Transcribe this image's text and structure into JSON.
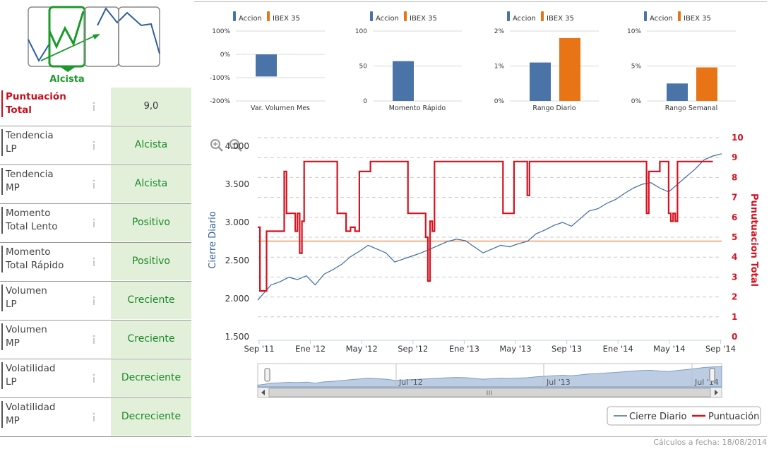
{
  "logo": {
    "label": "Alcista"
  },
  "indicators": [
    {
      "label_1": "Puntuación",
      "label_2": "Total",
      "value": "9,0"
    },
    {
      "label_1": "Tendencia",
      "label_2": "LP",
      "value": "Alcista"
    },
    {
      "label_1": "Tendencia",
      "label_2": "MP",
      "value": "Alcista"
    },
    {
      "label_1": "Momento",
      "label_2": "Total Lento",
      "value": "Positivo"
    },
    {
      "label_1": "Momento",
      "label_2": "Total Rápido",
      "value": "Positivo"
    },
    {
      "label_1": "Volumen",
      "label_2": "LP",
      "value": "Creciente"
    },
    {
      "label_1": "Volumen",
      "label_2": "MP",
      "value": "Creciente"
    },
    {
      "label_1": "Volatilidad",
      "label_2": "LP",
      "value": "Decreciente"
    },
    {
      "label_1": "Volatilidad",
      "label_2": "MP",
      "value": "Decreciente"
    }
  ],
  "colors": {
    "accion": "#4a73a8",
    "ibex": "#e87416",
    "score": "#d5121f",
    "green": "#1b8a2a"
  },
  "chart_data": [
    {
      "type": "bar",
      "title": "Var. Volumen Mes",
      "legend": [
        "Accion",
        "IBEX 35"
      ],
      "yticks": [
        "100%",
        "0%",
        "-100%",
        "-200%"
      ],
      "ylim": [
        -200,
        100
      ],
      "values": [
        -95,
        null
      ]
    },
    {
      "type": "bar",
      "title": "Momento Rápido",
      "legend": [
        "Accion",
        "IBEX 35"
      ],
      "yticks": [
        "100",
        "50",
        "0"
      ],
      "ylim": [
        0,
        100
      ],
      "values": [
        57,
        null
      ]
    },
    {
      "type": "bar",
      "title": "Rango Diario",
      "legend": [
        "Accion",
        "IBEX 35"
      ],
      "yticks": [
        "2%",
        "1%",
        "0%"
      ],
      "ylim": [
        0,
        2
      ],
      "values": [
        1.1,
        1.8
      ]
    },
    {
      "type": "bar",
      "title": "Rango Semanal",
      "legend": [
        "Accion",
        "IBEX 35"
      ],
      "yticks": [
        "10%",
        "5%",
        "0%"
      ],
      "ylim": [
        0,
        10
      ],
      "values": [
        2.5,
        4.8
      ]
    },
    {
      "type": "line",
      "title": "",
      "ylabel_left": "Cierre Diario",
      "ylabel_right": "Punutuacion Total",
      "yticks_left": [
        "1.500",
        "2.000",
        "2.500",
        "3.000",
        "3.500",
        "4.000"
      ],
      "ylim_left": [
        1500,
        4000
      ],
      "yticks_right": [
        "0",
        "1",
        "2",
        "3",
        "4",
        "5",
        "6",
        "7",
        "8",
        "9",
        "10"
      ],
      "ylim_right": [
        0,
        10
      ],
      "xticks": [
        "Sep '11",
        "Ene '12",
        "May '12",
        "Sep '12",
        "Ene '13",
        "May '13",
        "Sep '13",
        "Ene '14",
        "May '14",
        "Sep '14"
      ],
      "navigator_ticks": [
        "Jul '12",
        "Jul '13",
        "Jul '14"
      ],
      "reference_line": 4.8,
      "legend": [
        "Cierre Diario",
        "Puntuación"
      ],
      "series": [
        {
          "name": "Cierre Diario",
          "axis": "left",
          "values": [
            [
              0,
              1980
            ],
            [
              3,
              2080
            ],
            [
              6,
              2180
            ],
            [
              10,
              2220
            ],
            [
              14,
              2280
            ],
            [
              18,
              2250
            ],
            [
              22,
              2300
            ],
            [
              26,
              2180
            ],
            [
              30,
              2320
            ],
            [
              34,
              2380
            ],
            [
              38,
              2450
            ],
            [
              42,
              2550
            ],
            [
              46,
              2620
            ],
            [
              50,
              2700
            ],
            [
              54,
              2650
            ],
            [
              58,
              2600
            ],
            [
              62,
              2480
            ],
            [
              66,
              2520
            ],
            [
              70,
              2560
            ],
            [
              74,
              2600
            ],
            [
              78,
              2650
            ],
            [
              82,
              2700
            ],
            [
              86,
              2750
            ],
            [
              90,
              2780
            ],
            [
              94,
              2760
            ],
            [
              98,
              2680
            ],
            [
              102,
              2600
            ],
            [
              106,
              2650
            ],
            [
              110,
              2700
            ],
            [
              114,
              2680
            ],
            [
              118,
              2720
            ],
            [
              122,
              2750
            ],
            [
              126,
              2850
            ],
            [
              130,
              2900
            ],
            [
              134,
              2960
            ],
            [
              138,
              3000
            ],
            [
              142,
              2950
            ],
            [
              146,
              3050
            ],
            [
              150,
              3150
            ],
            [
              154,
              3180
            ],
            [
              158,
              3250
            ],
            [
              162,
              3300
            ],
            [
              166,
              3380
            ],
            [
              170,
              3450
            ],
            [
              174,
              3500
            ],
            [
              178,
              3520
            ],
            [
              182,
              3450
            ],
            [
              186,
              3400
            ],
            [
              190,
              3500
            ],
            [
              194,
              3600
            ],
            [
              198,
              3700
            ],
            [
              202,
              3820
            ],
            [
              206,
              3870
            ],
            [
              210,
              3900
            ]
          ]
        },
        {
          "name": "Puntuación",
          "axis": "right",
          "values": [
            [
              0,
              5.5
            ],
            [
              1,
              2.3
            ],
            [
              3,
              2.3
            ],
            [
              4,
              5.3
            ],
            [
              11,
              5.3
            ],
            [
              12,
              8.3
            ],
            [
              13,
              6.2
            ],
            [
              16,
              6.2
            ],
            [
              17,
              5.3
            ],
            [
              18,
              6.2
            ],
            [
              19,
              4.2
            ],
            [
              20,
              5.8
            ],
            [
              21,
              8.8
            ],
            [
              35,
              8.8
            ],
            [
              36,
              6.2
            ],
            [
              40,
              5.3
            ],
            [
              42,
              5.5
            ],
            [
              44,
              5.3
            ],
            [
              46,
              8.3
            ],
            [
              50,
              8.3
            ],
            [
              51,
              8.8
            ],
            [
              67,
              8.8
            ],
            [
              68,
              6.2
            ],
            [
              75,
              6.2
            ],
            [
              76,
              5.0
            ],
            [
              77,
              2.8
            ],
            [
              78,
              5.8
            ],
            [
              79,
              5.3
            ],
            [
              80,
              8.8
            ],
            [
              110,
              8.8
            ],
            [
              111,
              6.2
            ],
            [
              115,
              6.2
            ],
            [
              116,
              8.8
            ],
            [
              121,
              8.8
            ],
            [
              122,
              7.1
            ],
            [
              123,
              8.8
            ],
            [
              175,
              8.8
            ],
            [
              176,
              6.2
            ],
            [
              177,
              8.3
            ],
            [
              181,
              8.3
            ],
            [
              182,
              8.8
            ],
            [
              185,
              8.8
            ],
            [
              186,
              6.2
            ],
            [
              187,
              5.8
            ],
            [
              188,
              6.2
            ],
            [
              189,
              5.8
            ],
            [
              190,
              8.8
            ],
            [
              206,
              8.8
            ]
          ]
        }
      ]
    }
  ],
  "footer": "Cálculos a fecha: 18/08/2014"
}
